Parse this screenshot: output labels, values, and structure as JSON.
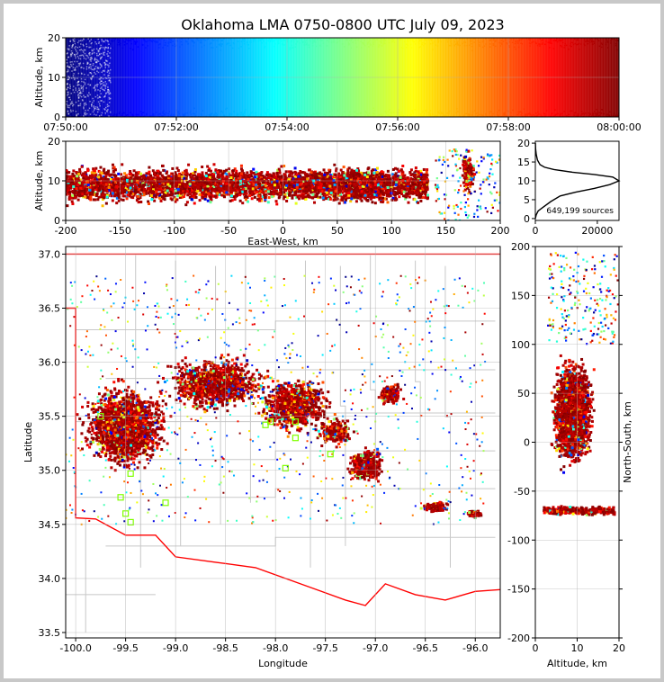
{
  "title": "Oklahoma LMA 0750-0800 UTC July 09, 2023",
  "source_count": "649,199 sources",
  "colors": {
    "outline": "#ff0000",
    "county_lines": "#c8c8c8",
    "station": "#80ff00",
    "histogram_line": "#000000"
  },
  "chart_data": [
    {
      "id": "time-altitude",
      "type": "scatter",
      "ylabel": "Altitude, km",
      "xlim": [
        "07:50:00",
        "08:00:00"
      ],
      "ylim": [
        0,
        20
      ],
      "x_ticks": [
        "07:50:00",
        "07:52:00",
        "07:54:00",
        "07:56:00",
        "07:58:00",
        "08:00:00"
      ],
      "y_ticks": [
        "0",
        "10",
        "20"
      ],
      "color_by": "time (jet colormap)",
      "grid": true
    },
    {
      "id": "ew-altitude",
      "type": "scatter",
      "xlabel": "East-West, km",
      "ylabel": "Altitude, km",
      "xlim": [
        -200,
        200
      ],
      "ylim": [
        0,
        20
      ],
      "x_ticks": [
        "-200",
        "-150",
        "-100",
        "-50",
        "0",
        "50",
        "100",
        "150",
        "200"
      ],
      "y_ticks": [
        "0",
        "10",
        "20"
      ],
      "grid": true
    },
    {
      "id": "altitude-histogram",
      "type": "line",
      "xlim": [
        0,
        27000
      ],
      "ylim": [
        0,
        20
      ],
      "x_ticks": [
        "0",
        "20000"
      ],
      "y_ticks": [
        "0",
        "5",
        "10",
        "15",
        "20"
      ],
      "series": [
        {
          "x": [
            0,
            300,
            900,
            2500,
            5000,
            8000,
            13000,
            19000,
            24000,
            27000,
            25000,
            19000,
            12000,
            6000,
            3000,
            1500,
            700,
            300,
            100,
            20
          ],
          "y": [
            0,
            1,
            2,
            3,
            4.5,
            6,
            7,
            8,
            9,
            10,
            11,
            11.7,
            12.3,
            13,
            13.6,
            14.3,
            15.5,
            17,
            18.5,
            20
          ]
        }
      ]
    },
    {
      "id": "plan-view",
      "type": "scatter",
      "xlabel": "Longitude",
      "ylabel": "Latitude",
      "xlim": [
        -100.1,
        -95.75
      ],
      "ylim": [
        33.45,
        37.07
      ],
      "x_ticks": [
        "-100.0",
        "-99.5",
        "-99.0",
        "-98.5",
        "-98.0",
        "-97.5",
        "-97.0",
        "-96.5",
        "-96.0"
      ],
      "y_ticks": [
        "33.5",
        "34.0",
        "34.5",
        "35.0",
        "35.5",
        "36.0",
        "36.5",
        "37.0"
      ],
      "grid": true,
      "stations": [
        {
          "lon": -99.45,
          "lat": 34.97
        },
        {
          "lon": -99.45,
          "lat": 34.52
        },
        {
          "lon": -99.5,
          "lat": 34.6
        },
        {
          "lon": -99.55,
          "lat": 34.75
        },
        {
          "lon": -99.1,
          "lat": 34.7
        },
        {
          "lon": -98.1,
          "lat": 35.42
        },
        {
          "lon": -98.05,
          "lat": 35.45
        },
        {
          "lon": -97.8,
          "lat": 35.45
        },
        {
          "lon": -97.9,
          "lat": 35.02
        },
        {
          "lon": -97.45,
          "lat": 35.15
        },
        {
          "lon": -97.8,
          "lat": 35.3
        },
        {
          "lon": -99.75,
          "lat": 35.5
        }
      ]
    },
    {
      "id": "ns-altitude",
      "type": "scatter",
      "xlabel": "Altitude, km",
      "ylabel": "North-South, km",
      "xlim": [
        0,
        20
      ],
      "ylim": [
        -200,
        200
      ],
      "x_ticks": [
        "0",
        "10",
        "20"
      ],
      "y_ticks": [
        "-200",
        "-150",
        "-100",
        "-50",
        "0",
        "50",
        "100",
        "150",
        "200"
      ],
      "grid": true
    }
  ]
}
